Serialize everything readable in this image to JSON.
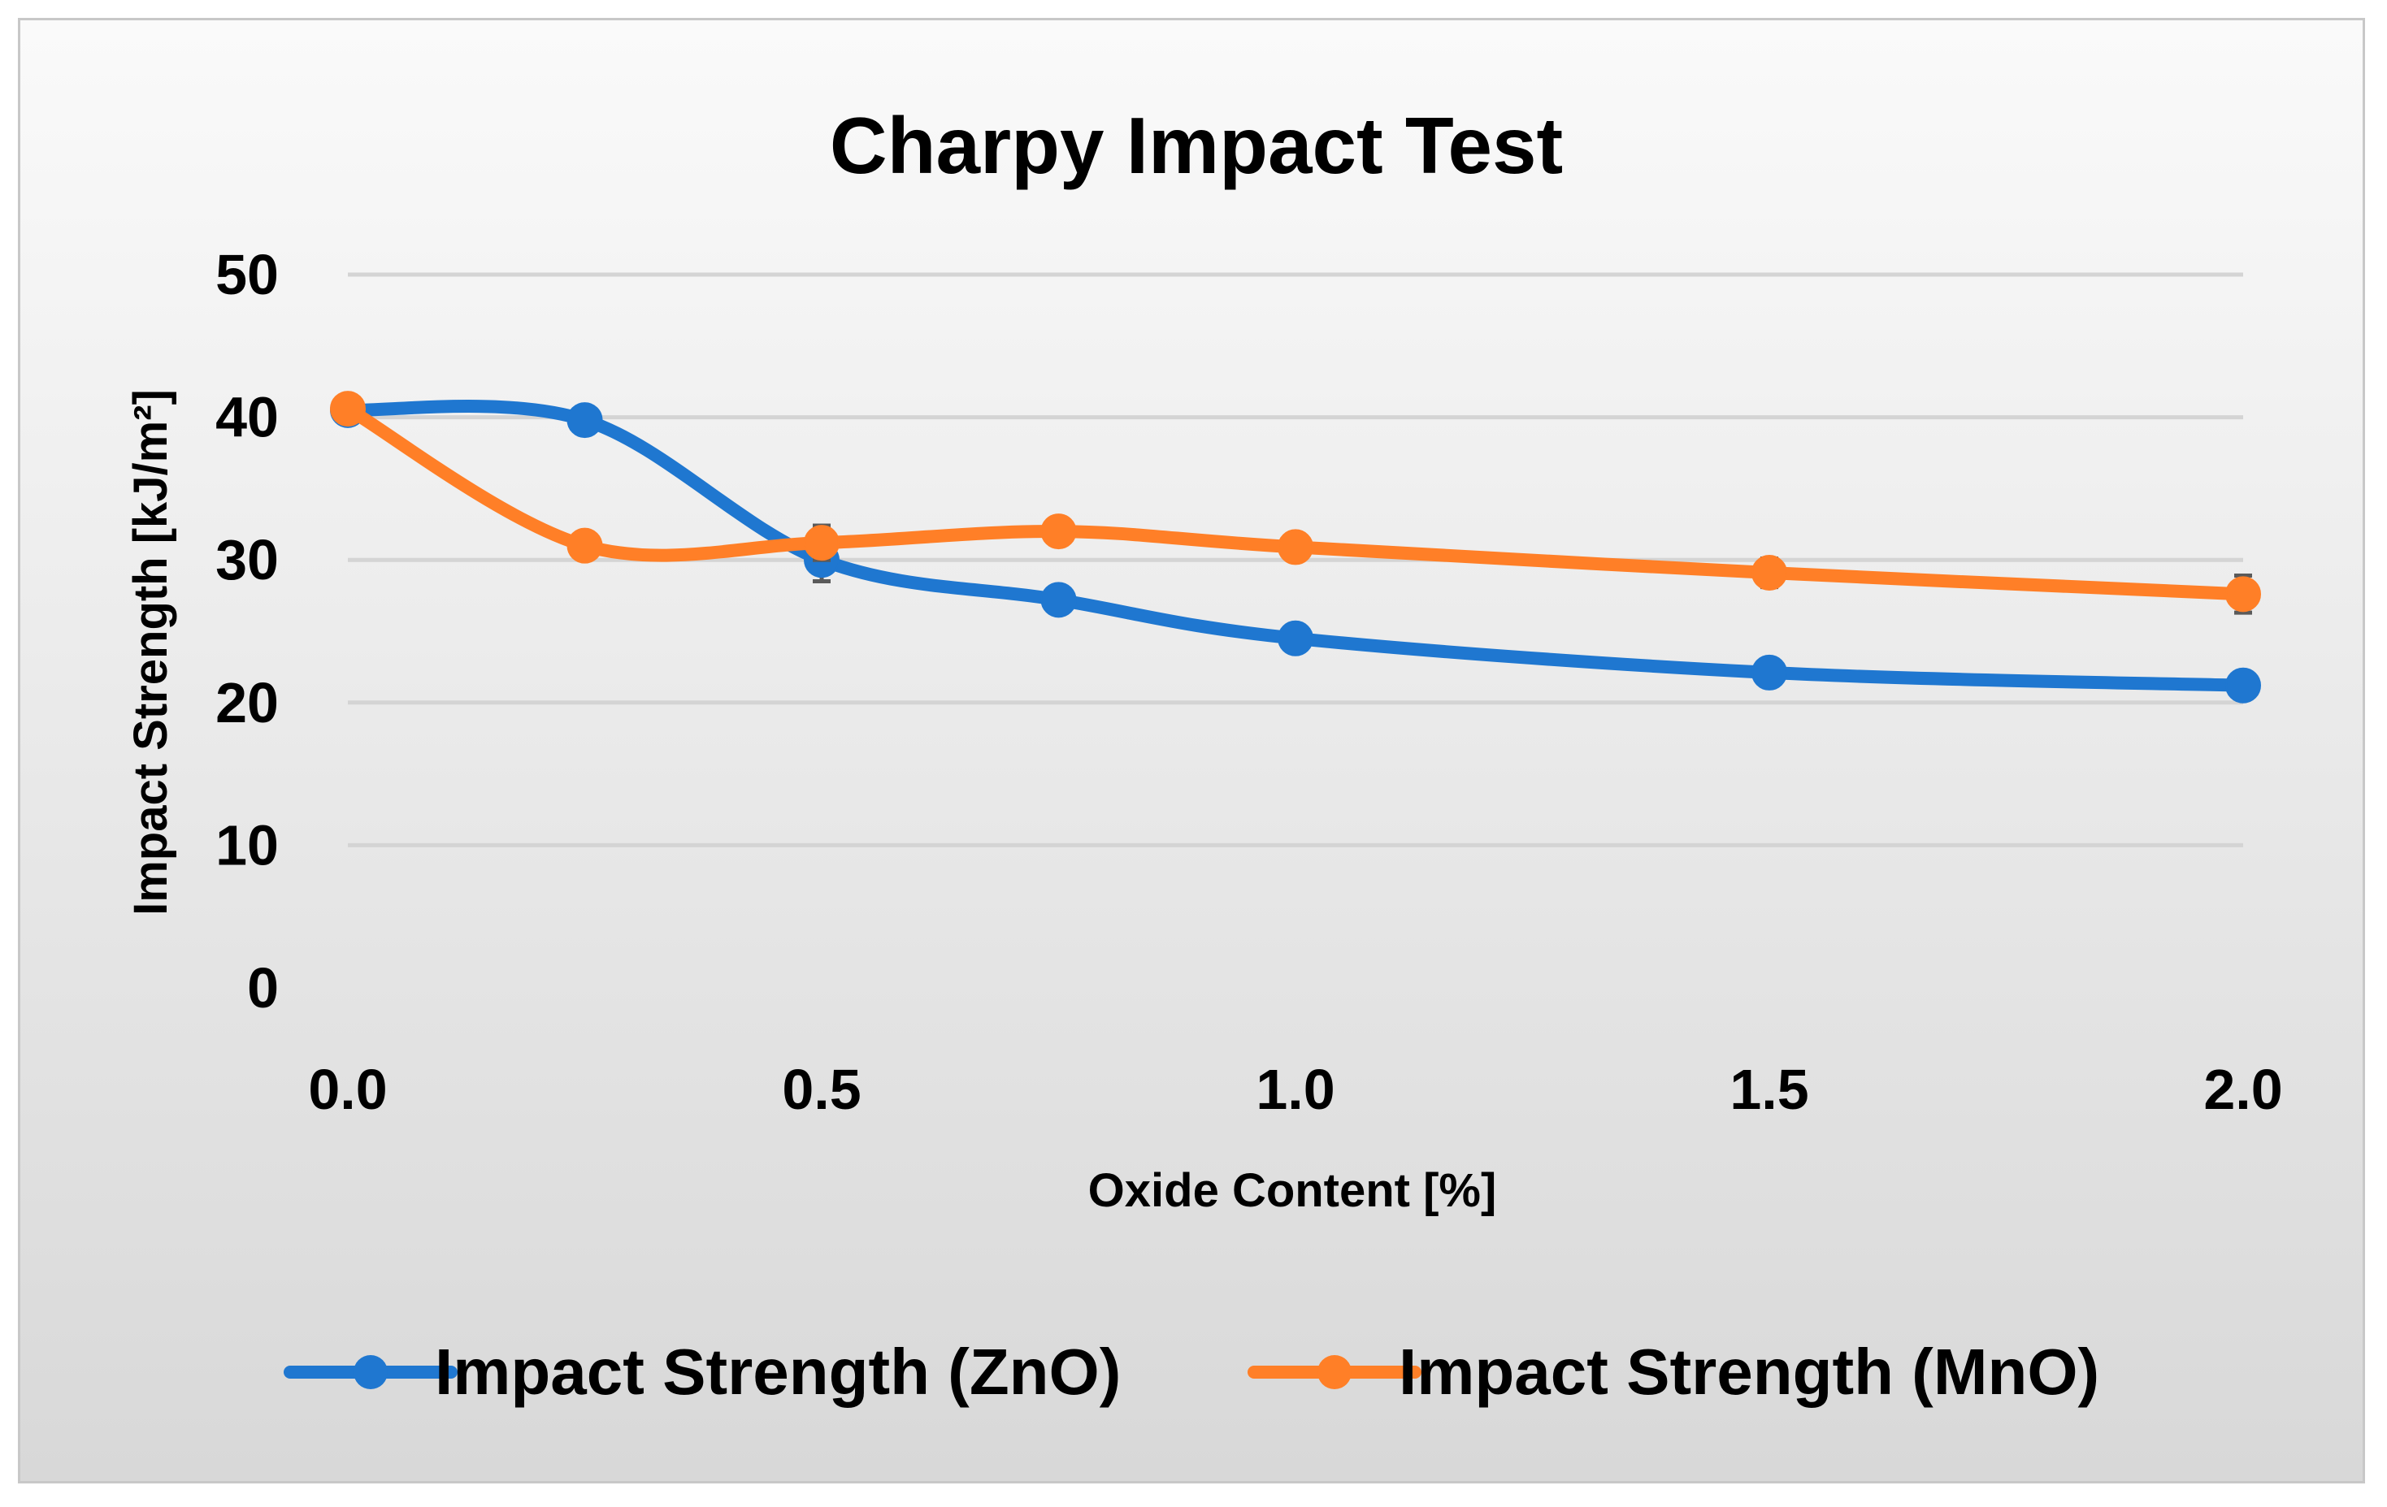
{
  "chart_data": {
    "type": "line",
    "title": "Charpy Impact Test",
    "xlabel": "Oxide Content [%]",
    "ylabel": "Impact Strength [kJ/m²]",
    "xlim": [
      0,
      2.0
    ],
    "ylim": [
      0,
      50
    ],
    "x_ticks": [
      "0.0",
      "0.5",
      "1.0",
      "1.5",
      "2.0"
    ],
    "y_ticks": [
      "0",
      "10",
      "20",
      "30",
      "40",
      "50"
    ],
    "grid": true,
    "legend_position": "bottom",
    "smooth": true,
    "series": [
      {
        "name": "Impact Strength (ZnO)",
        "color": "#1F77D0",
        "x": [
          0.0,
          0.25,
          0.5,
          0.75,
          1.0,
          1.5,
          2.0
        ],
        "values": [
          40.5,
          39.8,
          30.0,
          27.2,
          24.5,
          22.1,
          21.2
        ],
        "errors": [
          0.3,
          0.5,
          1.5,
          0.8,
          0.7,
          0.5,
          0.7
        ]
      },
      {
        "name": "Impact Strength (MnO)",
        "color": "#FF7F27",
        "x": [
          0.0,
          0.25,
          0.5,
          0.75,
          1.0,
          1.5,
          2.0
        ],
        "values": [
          40.6,
          31.0,
          31.2,
          32.0,
          30.9,
          29.1,
          27.6
        ],
        "errors": [
          0.3,
          0.5,
          1.2,
          0.5,
          0.5,
          1.0,
          1.3
        ]
      }
    ]
  }
}
